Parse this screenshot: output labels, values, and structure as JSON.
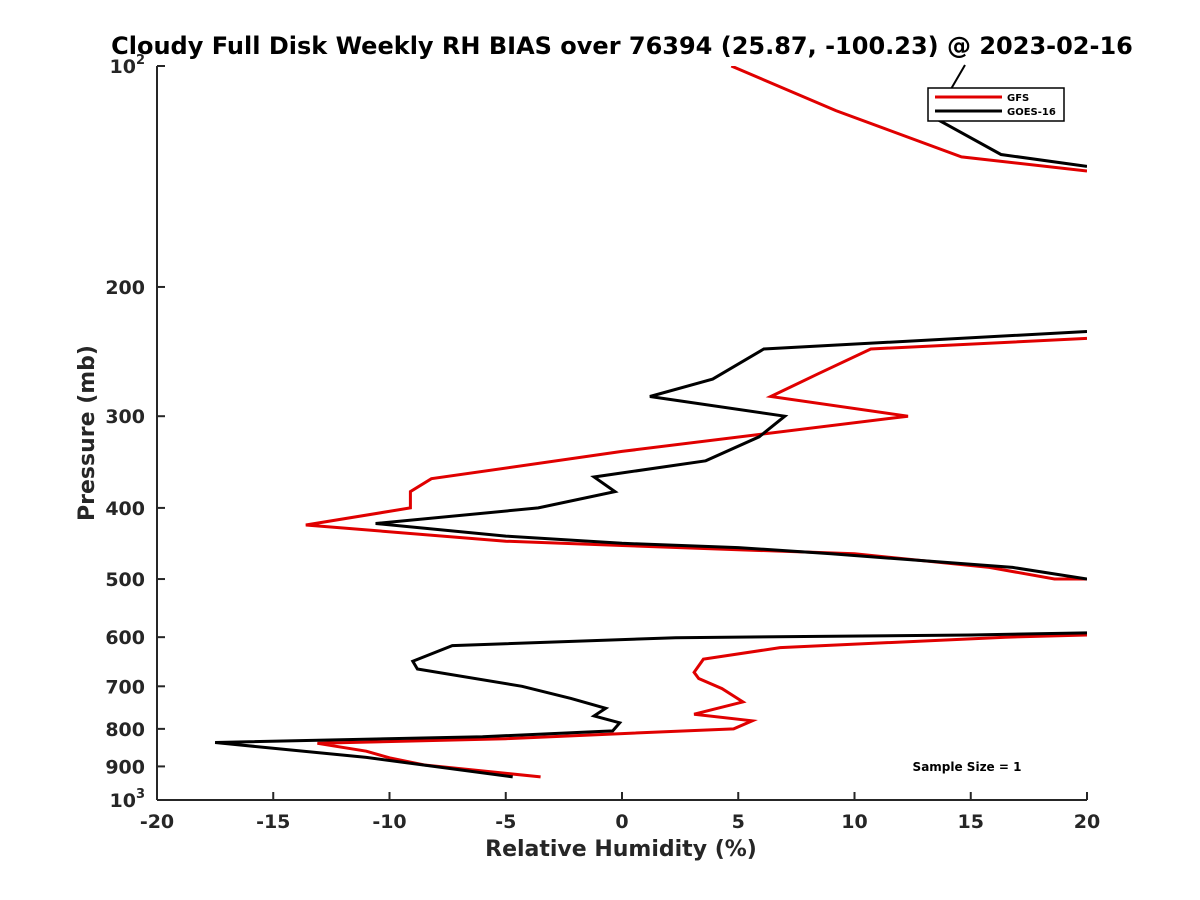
{
  "chart_data": {
    "type": "line",
    "title": "Cloudy Full Disk Weekly RH BIAS over 76394 (25.87, -100.23) @ 2023-02-16",
    "xlabel": "Relative Humidity (%)",
    "ylabel": "Pressure (mb)",
    "xlim": [
      -20,
      20
    ],
    "ylim": [
      100,
      1000
    ],
    "yscale": "log",
    "y_reversed": true,
    "grid": false,
    "legend_position": "top-right",
    "x_ticks": [
      "-20",
      "-15",
      "-10",
      "-5",
      "0",
      "5",
      "10",
      "15",
      "20"
    ],
    "y_ticks": [
      {
        "value": 100,
        "base": "10",
        "exp": "2",
        "label": ""
      },
      {
        "value": 200,
        "label": "200"
      },
      {
        "value": 300,
        "label": "300"
      },
      {
        "value": 400,
        "label": "400"
      },
      {
        "value": 500,
        "label": "500"
      },
      {
        "value": 600,
        "label": "600"
      },
      {
        "value": 700,
        "label": "700"
      },
      {
        "value": 800,
        "label": "800"
      },
      {
        "value": 900,
        "label": "900"
      },
      {
        "value": 1000,
        "base": "10",
        "exp": "3",
        "label": ""
      }
    ],
    "annotation": "Sample Size = 1",
    "series": [
      {
        "name": "GFS",
        "color": "#e00000",
        "points": [
          [
            4.7,
            100
          ],
          [
            9.2,
            115
          ],
          [
            14.6,
            133
          ],
          [
            20,
            139
          ],
          [
            null,
            null
          ],
          [
            20,
            235
          ],
          [
            10.7,
            243
          ],
          [
            8.4,
            263
          ],
          [
            6.4,
            282
          ],
          [
            12.3,
            300
          ],
          [
            0,
            335
          ],
          [
            -8.2,
            365
          ],
          [
            -9.1,
            380
          ],
          [
            -9.1,
            400
          ],
          [
            -13.6,
            422
          ],
          [
            -5,
            444
          ],
          [
            0,
            450
          ],
          [
            5,
            456
          ],
          [
            10,
            462
          ],
          [
            15.8,
            482
          ],
          [
            18.6,
            500
          ],
          [
            20,
            500
          ],
          [
            null,
            null
          ],
          [
            20,
            596
          ],
          [
            16.5,
            600
          ],
          [
            6.8,
            620
          ],
          [
            3.5,
            643
          ],
          [
            3.1,
            670
          ],
          [
            3.3,
            683
          ],
          [
            4.3,
            705
          ],
          [
            5.2,
            735
          ],
          [
            3.1,
            764
          ],
          [
            5.6,
            780
          ],
          [
            4.8,
            800
          ],
          [
            0,
            812
          ],
          [
            -5,
            825
          ],
          [
            -13.1,
            837
          ],
          [
            -11,
            858
          ],
          [
            -10,
            876
          ],
          [
            -8.5,
            896
          ],
          [
            -3.5,
            930
          ]
        ]
      },
      {
        "name": "GOES-16",
        "color": "#000000",
        "points": [
          [
            13.3,
            117
          ],
          [
            16.3,
            132
          ],
          [
            20,
            137
          ],
          [
            null,
            null
          ],
          [
            20,
            230
          ],
          [
            6.1,
            243
          ],
          [
            3.9,
            267
          ],
          [
            1.2,
            282
          ],
          [
            7.0,
            300
          ],
          [
            5.9,
            320
          ],
          [
            3.6,
            345
          ],
          [
            -1.2,
            363
          ],
          [
            -0.3,
            380
          ],
          [
            -3.6,
            400
          ],
          [
            -10.6,
            420
          ],
          [
            -5,
            437
          ],
          [
            0,
            447
          ],
          [
            5,
            453
          ],
          [
            9,
            462
          ],
          [
            16.8,
            482
          ],
          [
            20,
            500
          ],
          [
            null,
            null
          ],
          [
            20,
            592
          ],
          [
            15,
            596
          ],
          [
            2.3,
            601
          ],
          [
            -7.3,
            616
          ],
          [
            -9.0,
            647
          ],
          [
            -8.8,
            663
          ],
          [
            -4.3,
            700
          ],
          [
            -2.2,
            727
          ],
          [
            -0.7,
            750
          ],
          [
            -1.2,
            768
          ],
          [
            -0.1,
            785
          ],
          [
            -0.4,
            805
          ],
          [
            -6,
            820
          ],
          [
            -17.5,
            835
          ],
          [
            -11,
            875
          ],
          [
            -4.7,
            930
          ]
        ]
      }
    ]
  }
}
